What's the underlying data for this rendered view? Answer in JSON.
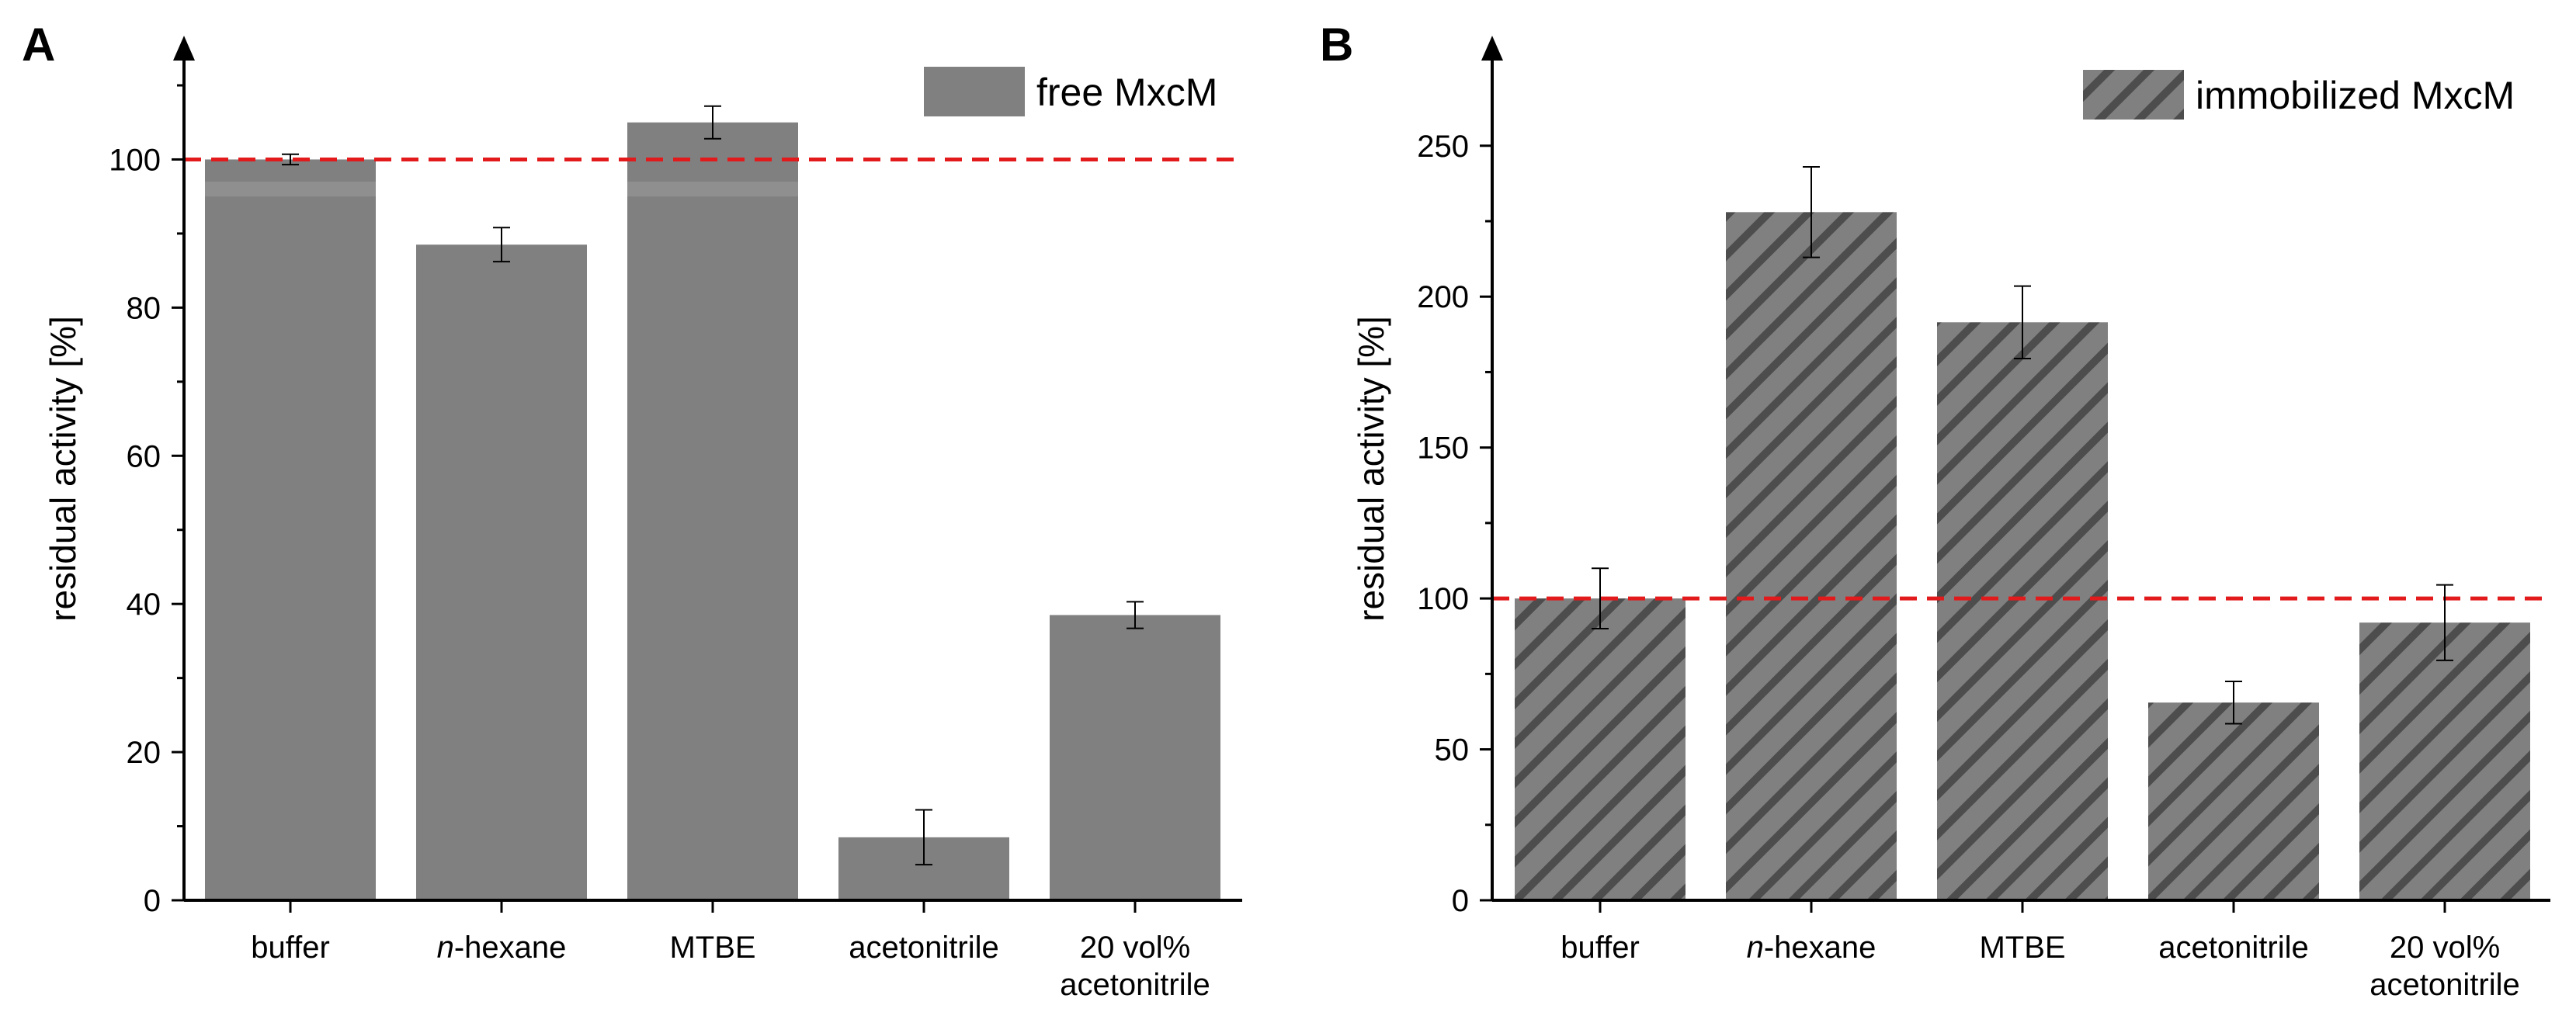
{
  "colors": {
    "bar": "#808080",
    "hatch": "#4d4d4d",
    "reference_line": "#e31a1c",
    "axis": "#000000",
    "error_bar": "#000000"
  },
  "chart_data": [
    {
      "panel": "A",
      "type": "bar",
      "categories": [
        "buffer",
        "n-hexane",
        "MTBE",
        "acetonitrile",
        "20 vol% acetonitrile"
      ],
      "category_lines": [
        [
          "buffer"
        ],
        [
          "n",
          "-hexane"
        ],
        [
          "MTBE"
        ],
        [
          "acetonitrile"
        ],
        [
          "20 vol%",
          "acetonitrile"
        ]
      ],
      "values": [
        100,
        88.5,
        105,
        8.5,
        38.5
      ],
      "errors": [
        0.7,
        2.3,
        2.2,
        3.7,
        1.8
      ],
      "ylabel": "residual activity [%]",
      "xlabel": "",
      "ylim": [
        0,
        110
      ],
      "yticks": [
        0,
        20,
        40,
        60,
        80,
        100
      ],
      "ytick_labels": [
        "0",
        "20",
        "40",
        "60",
        "80",
        "100"
      ],
      "reference_line": 100,
      "legend": {
        "label": "free MxcM",
        "position": "top-right",
        "pattern": "solid"
      }
    },
    {
      "panel": "B",
      "type": "bar",
      "categories": [
        "buffer",
        "n-hexane",
        "MTBE",
        "acetonitrile",
        "20 vol% acetonitrile"
      ],
      "category_lines": [
        [
          "buffer"
        ],
        [
          "n",
          "-hexane"
        ],
        [
          "MTBE"
        ],
        [
          "acetonitrile"
        ],
        [
          "20 vol%",
          "acetonitrile"
        ]
      ],
      "values": [
        100,
        228,
        191.5,
        65.5,
        92
      ],
      "errors": [
        10,
        15,
        12,
        7,
        12.5
      ],
      "ylabel": "residual activity [%]",
      "xlabel": "",
      "ylim": [
        0,
        270
      ],
      "yticks": [
        0,
        50,
        100,
        150,
        200,
        250
      ],
      "ytick_labels": [
        "0",
        "50",
        "100",
        "150",
        "200",
        "250"
      ],
      "reference_line": 100,
      "legend": {
        "label": "immobilized MxcM",
        "position": "top-right",
        "pattern": "hatched"
      }
    }
  ]
}
